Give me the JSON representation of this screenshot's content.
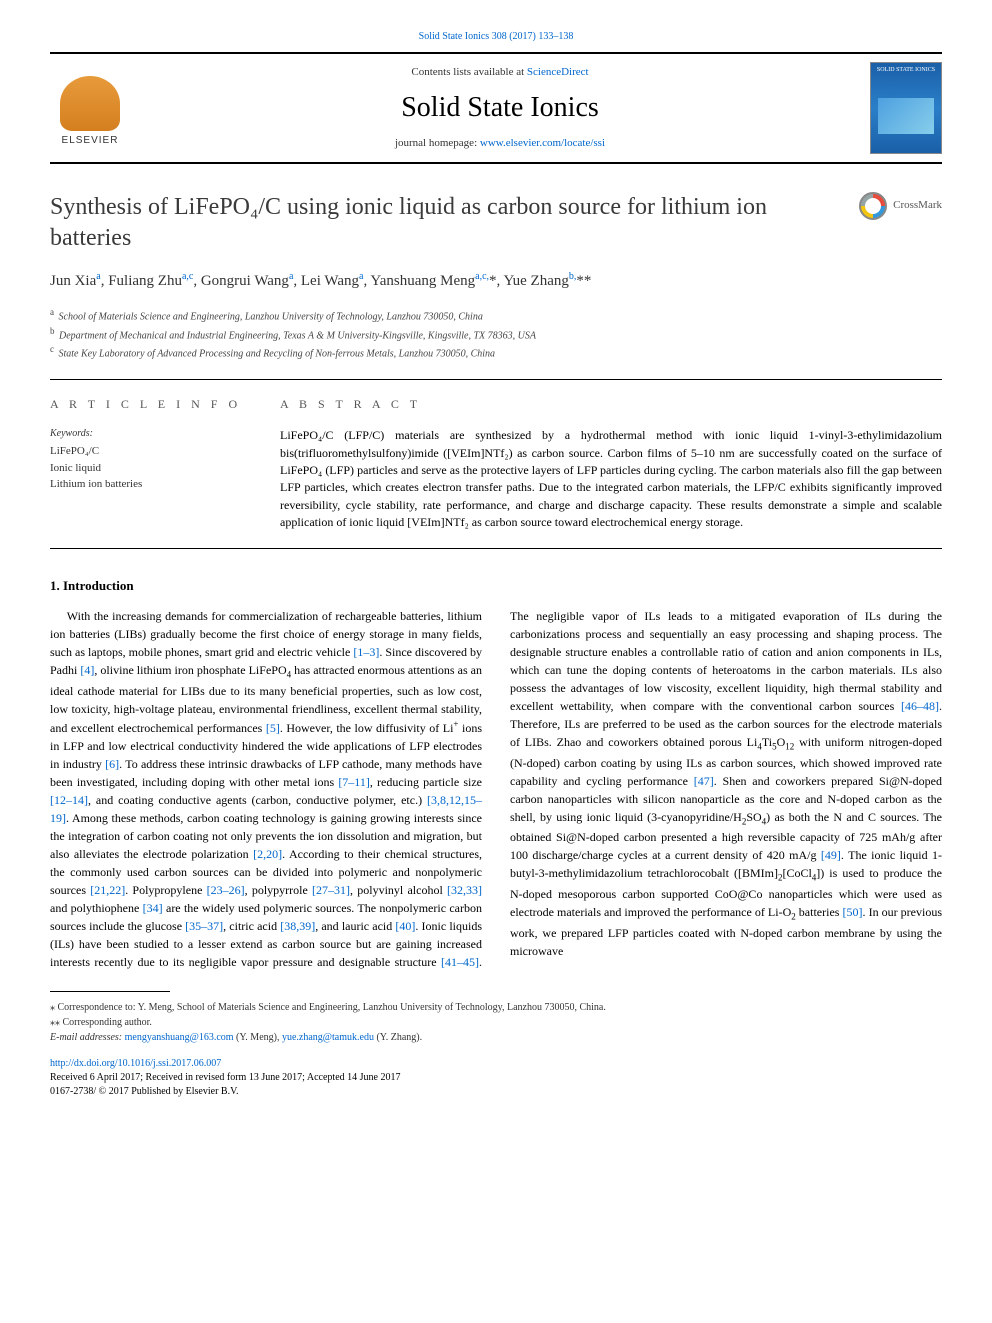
{
  "journal": {
    "citation": "Solid State Ionics 308 (2017) 133–138",
    "contents_prefix": "Contents lists available at ",
    "contents_link": "ScienceDirect",
    "name": "Solid State Ionics",
    "homepage_prefix": "journal homepage: ",
    "homepage_url": "www.elsevier.com/locate/ssi",
    "elsevier_label": "ELSEVIER",
    "cover_title": "SOLID STATE IONICS"
  },
  "crossmark_label": "CrossMark",
  "title": "Synthesis of LiFePO₄/C using ionic liquid as carbon source for lithium ion batteries",
  "authors_html": "Jun Xia<sup>a</sup>, Fuliang Zhu<sup>a,c</sup>, Gongrui Wang<sup>a</sup>, Lei Wang<sup>a</sup>, Yanshuang Meng<sup>a,c,</sup>*, Yue Zhang<sup>b,</sup>**",
  "affiliations": {
    "a": "School of Materials Science and Engineering, Lanzhou University of Technology, Lanzhou 730050, China",
    "b": "Department of Mechanical and Industrial Engineering, Texas A & M University-Kingsville, Kingsville, TX 78363, USA",
    "c": "State Key Laboratory of Advanced Processing and Recycling of Non-ferrous Metals, Lanzhou 730050, China"
  },
  "article_info_heading": "A R T I C L E  I N F O",
  "abstract_heading": "A B S T R A C T",
  "keywords_label": "Keywords:",
  "keywords": "LiFePO₄/C\nIonic liquid\nLithium ion batteries",
  "abstract_text": "LiFePO₄/C (LFP/C) materials are synthesized by a hydrothermal method with ionic liquid 1-vinyl-3-ethylimidazolium bis(trifluoromethylsulfony)imide ([VEIm]NTf₂) as carbon source. Carbon films of 5–10 nm are successfully coated on the surface of LiFePO₄ (LFP) particles and serve as the protective layers of LFP particles during cycling. The carbon materials also fill the gap between LFP particles, which creates electron transfer paths. Due to the integrated carbon materials, the LFP/C exhibits significantly improved reversibility, cycle stability, rate performance, and charge and discharge capacity. These results demonstrate a simple and scalable application of ionic liquid [VEIm]NTf₂ as carbon source toward electrochemical energy storage.",
  "intro_heading": "1. Introduction",
  "footnotes": {
    "corr1": "⁎ Correspondence to: Y. Meng, School of Materials Science and Engineering, Lanzhou University of Technology, Lanzhou 730050, China.",
    "corr2": "⁎⁎ Corresponding author.",
    "email_label": "E-mail addresses: ",
    "email1": "mengyanshuang@163.com",
    "email1_who": " (Y. Meng), ",
    "email2": "yue.zhang@tamuk.edu",
    "email2_who": " (Y. Zhang)."
  },
  "doi": {
    "url": "http://dx.doi.org/10.1016/j.ssi.2017.06.007",
    "received": "Received 6 April 2017; Received in revised form 13 June 2017; Accepted 14 June 2017",
    "copyright": "0167-2738/ © 2017 Published by Elsevier B.V."
  },
  "colors": {
    "link": "#0066cc",
    "text": "#000000",
    "border": "#000000",
    "elsevier_orange": "#e89b3b",
    "cover_blue": "#1a5fa8"
  }
}
